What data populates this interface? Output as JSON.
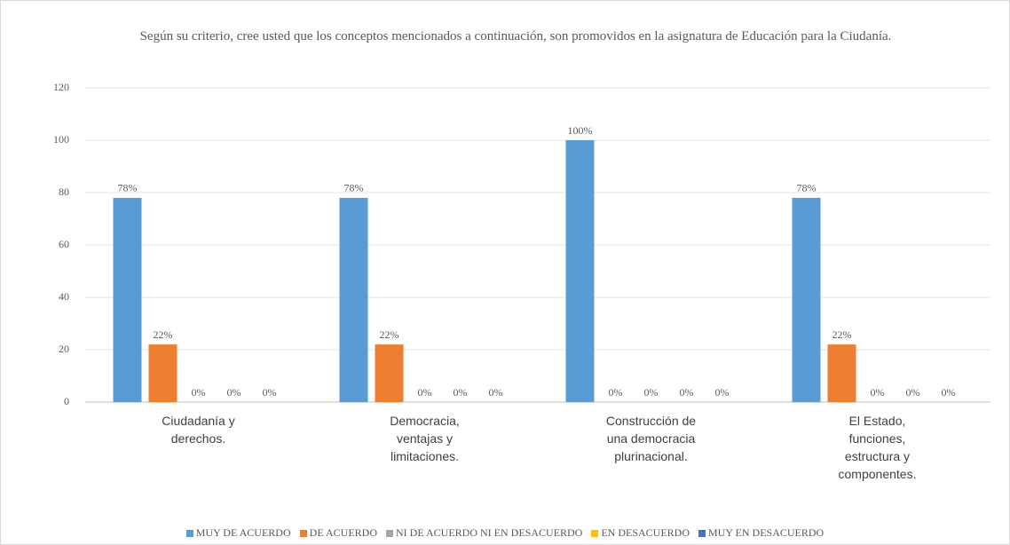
{
  "chart_data": {
    "type": "bar",
    "title": "Según su criterio, cree usted que los conceptos mencionados a continuación, son promovidos en la asignatura de Educación para la Ciudanía.",
    "categories": [
      "Ciudadanía y derechos.",
      "Democracia, ventajas y limitaciones.",
      "Construcción de una democracia plurinacional.",
      "El Estado, funciones, estructura y componentes."
    ],
    "series": [
      {
        "name": "MUY DE ACUERDO",
        "color": "#5b9bd5",
        "values": [
          78,
          78,
          100,
          78
        ],
        "value_labels": [
          "78%",
          "78%",
          "100%",
          "78%"
        ]
      },
      {
        "name": "DE ACUERDO",
        "color": "#ed7d31",
        "values": [
          22,
          22,
          0,
          22
        ],
        "value_labels": [
          "22%",
          "22%",
          "0%",
          "22%"
        ]
      },
      {
        "name": "NI DE ACUERDO NI EN DESACUERDO",
        "color": "#a5a5a5",
        "values": [
          0,
          0,
          0,
          0
        ],
        "value_labels": [
          "0%",
          "0%",
          "0%",
          "0%"
        ]
      },
      {
        "name": "EN DESACUERDO",
        "color": "#ffc000",
        "values": [
          0,
          0,
          0,
          0
        ],
        "value_labels": [
          "0%",
          "0%",
          "0%",
          "0%"
        ]
      },
      {
        "name": "MUY EN DESACUERDO",
        "color": "#4472c4",
        "values": [
          0,
          0,
          0,
          0
        ],
        "value_labels": [
          "0%",
          "0%",
          "0%",
          "0%"
        ]
      }
    ],
    "ylim": [
      0,
      120
    ],
    "yticks": [
      0,
      20,
      40,
      60,
      80,
      100,
      120
    ],
    "grid": true,
    "legend": "bottom"
  }
}
